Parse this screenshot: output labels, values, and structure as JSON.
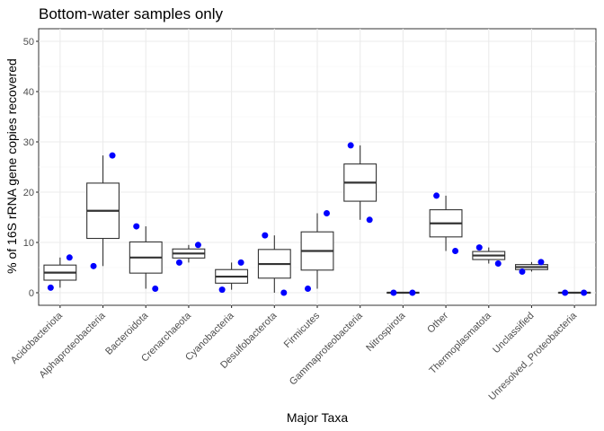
{
  "chart_data": {
    "type": "box",
    "title": "Bottom-water samples only",
    "xlabel": "Major Taxa",
    "ylabel": "% of 16S rRNA gene copies recovered",
    "ylim": [
      -2.5,
      52.5
    ],
    "yticks": [
      0,
      10,
      20,
      30,
      40,
      50
    ],
    "grid": true,
    "point_color": "#0000ff",
    "categories": [
      "Acidobacteriota",
      "Alphaproteobacteria",
      "Bacteroidota",
      "Crenarchaeota",
      "Cyanobacteria",
      "Desulfobacterota",
      "Firmicutes",
      "Gammaproteobacteria",
      "Nitrospirota",
      "Other",
      "Thermoplasmatota",
      "Unclassified",
      "Unresolved_Proteobacteria"
    ],
    "boxes": [
      {
        "min": 1.0,
        "q1": 2.5,
        "median": 4.0,
        "q3": 5.5,
        "max": 7.0
      },
      {
        "min": 5.3,
        "q1": 10.8,
        "median": 16.3,
        "q3": 21.8,
        "max": 27.3
      },
      {
        "min": 0.8,
        "q1": 3.9,
        "median": 7.0,
        "q3": 10.1,
        "max": 13.2
      },
      {
        "min": 6.0,
        "q1": 6.9,
        "median": 7.8,
        "q3": 8.7,
        "max": 9.5
      },
      {
        "min": 0.6,
        "q1": 1.9,
        "median": 3.2,
        "q3": 4.6,
        "max": 6.0
      },
      {
        "min": 0.0,
        "q1": 2.9,
        "median": 5.7,
        "q3": 8.6,
        "max": 11.4
      },
      {
        "min": 0.8,
        "q1": 4.5,
        "median": 8.3,
        "q3": 12.1,
        "max": 15.8
      },
      {
        "min": 14.5,
        "q1": 18.2,
        "median": 21.9,
        "q3": 25.6,
        "max": 29.3
      },
      {
        "min": 0.0,
        "q1": 0.0,
        "median": 0.0,
        "q3": 0.0,
        "max": 0.0
      },
      {
        "min": 8.3,
        "q1": 11.1,
        "median": 13.8,
        "q3": 16.5,
        "max": 19.3
      },
      {
        "min": 5.8,
        "q1": 6.6,
        "median": 7.4,
        "q3": 8.2,
        "max": 9.0
      },
      {
        "min": 4.2,
        "q1": 4.6,
        "median": 5.1,
        "q3": 5.6,
        "max": 6.1
      },
      {
        "min": 0.0,
        "q1": 0.0,
        "median": 0.0,
        "q3": 0.0,
        "max": 0.0
      }
    ],
    "points": [
      [
        {
          "y": 1.0,
          "side": "left"
        },
        {
          "y": 7.0,
          "side": "right"
        }
      ],
      [
        {
          "y": 5.3,
          "side": "left"
        },
        {
          "y": 27.3,
          "side": "right"
        }
      ],
      [
        {
          "y": 13.2,
          "side": "left"
        },
        {
          "y": 0.8,
          "side": "right"
        }
      ],
      [
        {
          "y": 6.0,
          "side": "left"
        },
        {
          "y": 9.5,
          "side": "right"
        }
      ],
      [
        {
          "y": 0.6,
          "side": "left"
        },
        {
          "y": 6.0,
          "side": "right"
        }
      ],
      [
        {
          "y": 11.4,
          "side": "left"
        },
        {
          "y": 0.0,
          "side": "right"
        }
      ],
      [
        {
          "y": 0.8,
          "side": "left"
        },
        {
          "y": 15.8,
          "side": "right"
        }
      ],
      [
        {
          "y": 29.3,
          "side": "left"
        },
        {
          "y": 14.5,
          "side": "right"
        }
      ],
      [
        {
          "y": 0.0,
          "side": "left"
        },
        {
          "y": 0.0,
          "side": "right"
        }
      ],
      [
        {
          "y": 19.3,
          "side": "left"
        },
        {
          "y": 8.3,
          "side": "right"
        }
      ],
      [
        {
          "y": 9.0,
          "side": "left"
        },
        {
          "y": 5.8,
          "side": "right"
        }
      ],
      [
        {
          "y": 4.2,
          "side": "left"
        },
        {
          "y": 6.1,
          "side": "right"
        }
      ],
      [
        {
          "y": 0.0,
          "side": "left"
        },
        {
          "y": 0.0,
          "side": "right"
        }
      ]
    ]
  }
}
